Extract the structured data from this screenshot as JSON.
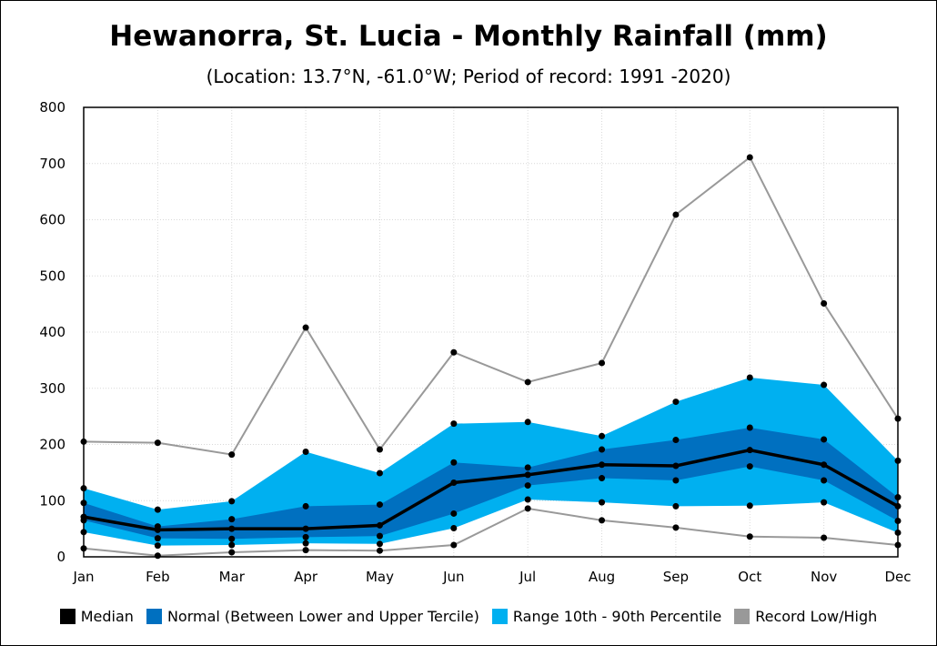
{
  "chart_data": {
    "type": "area",
    "title": "Hewanorra, St. Lucia - Monthly Rainfall (mm)",
    "subtitle": "(Location: 13.7°N, -61.0°W; Period of record: 1991 -2020)",
    "categories": [
      "Jan",
      "Feb",
      "Mar",
      "Apr",
      "May",
      "Jun",
      "Jul",
      "Aug",
      "Sep",
      "Oct",
      "Nov",
      "Dec"
    ],
    "ylim": [
      0,
      800
    ],
    "yticks": [
      0,
      100,
      200,
      300,
      400,
      500,
      600,
      700,
      800
    ],
    "grid": true,
    "legend_position": "bottom",
    "series": [
      {
        "name": "Record Low/High",
        "color": "#999999",
        "kind": "band-lines",
        "low": [
          15,
          2,
          8,
          12,
          11,
          21,
          86,
          65,
          52,
          36,
          34,
          21
        ],
        "high": [
          205,
          203,
          182,
          408,
          191,
          364,
          311,
          345,
          609,
          711,
          451,
          246
        ]
      },
      {
        "name": "Range 10th - 90th Percentile",
        "color": "#00B0F0",
        "kind": "band",
        "low": [
          44,
          20,
          21,
          24,
          23,
          51,
          102,
          97,
          90,
          91,
          97,
          43
        ],
        "high": [
          122,
          84,
          99,
          187,
          149,
          237,
          240,
          215,
          276,
          319,
          306,
          171
        ]
      },
      {
        "name": "Normal (Between Lower and Upper Tercile)",
        "color": "#0070C0",
        "kind": "band",
        "low": [
          65,
          33,
          32,
          35,
          37,
          77,
          127,
          140,
          136,
          161,
          136,
          64
        ],
        "high": [
          96,
          54,
          67,
          90,
          93,
          168,
          159,
          191,
          208,
          230,
          209,
          106
        ]
      },
      {
        "name": "Median",
        "color": "#000000",
        "kind": "line",
        "values": [
          71,
          48,
          50,
          50,
          56,
          132,
          146,
          164,
          162,
          190,
          164,
          90
        ]
      }
    ],
    "legend": [
      "Median",
      "Normal (Between Lower and Upper Tercile)",
      "Range 10th - 90th Percentile",
      "Record Low/High"
    ]
  }
}
